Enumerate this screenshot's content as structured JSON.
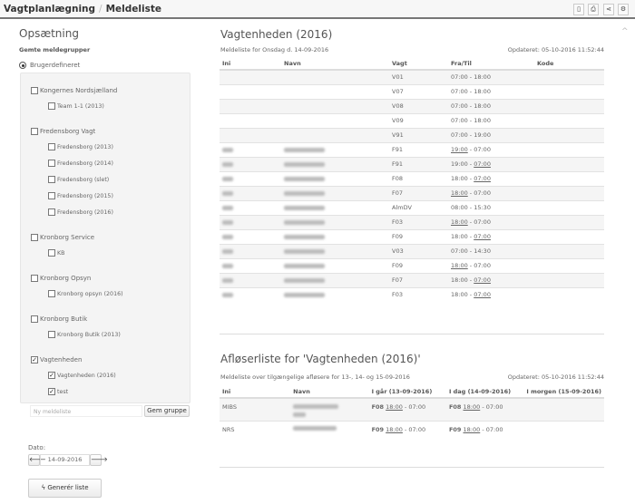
{
  "header": {
    "breadcrumb": [
      "Vagtplanlægning",
      "Meldeliste"
    ],
    "separator": "/",
    "toolbar": [
      {
        "icon": "pdf-icon",
        "glyph": "▯"
      },
      {
        "icon": "print-icon",
        "glyph": "⎙"
      },
      {
        "icon": "share-icon",
        "glyph": "⋖"
      },
      {
        "icon": "gear-icon",
        "glyph": "⚙"
      }
    ]
  },
  "sidebar": {
    "title": "Opsætning",
    "subtitle": "Gemte meldegrupper",
    "radio_label": "Brugerdefineret",
    "groups": [
      {
        "label": "Kongernes Nordsjælland",
        "checked": false,
        "items": [
          {
            "label": "Team 1-1 (2013)",
            "checked": false
          }
        ]
      },
      {
        "label": "Fredensborg Vagt",
        "checked": false,
        "items": [
          {
            "label": "Fredensborg (2013)",
            "checked": false
          },
          {
            "label": "Fredensborg (2014)",
            "checked": false
          },
          {
            "label": "Fredensborg (slet)",
            "checked": false
          },
          {
            "label": "Fredensborg (2015)",
            "checked": false
          },
          {
            "label": "Fredensborg (2016)",
            "checked": false
          }
        ]
      },
      {
        "label": "Kronborg Service",
        "checked": false,
        "items": [
          {
            "label": "KB",
            "checked": false
          }
        ]
      },
      {
        "label": "Kronborg Opsyn",
        "checked": false,
        "items": [
          {
            "label": "Kronborg opsyn (2016)",
            "checked": false
          }
        ]
      },
      {
        "label": "Kronborg Butik",
        "checked": false,
        "items": [
          {
            "label": "Kronborg Butik (2013)",
            "checked": false
          }
        ]
      },
      {
        "label": "Vagtenheden",
        "checked": true,
        "items": [
          {
            "label": "Vagtenheden (2016)",
            "checked": true
          },
          {
            "label": "test",
            "checked": true
          }
        ]
      }
    ],
    "new_list_placeholder": "Ny meldeliste",
    "save_group": "Gem gruppe",
    "date_label": "Dato:",
    "date_value": "14-09-2016",
    "generate": "Generér liste"
  },
  "meldeliste": {
    "title": "Vagtenheden (2016)",
    "subtitle": "Meldeliste for Onsdag d. 14-09-2016",
    "updated": "Opdateret: 05-10-2016 11:52:44",
    "columns": [
      "Ini",
      "Navn",
      "Vagt",
      "Fra/Til",
      "Kode"
    ],
    "rows": [
      {
        "vagt": "V01",
        "from": "07:00",
        "to": "18:00",
        "u": ""
      },
      {
        "vagt": "V07",
        "from": "07:00",
        "to": "18:00",
        "u": ""
      },
      {
        "vagt": "V08",
        "from": "07:00",
        "to": "18:00",
        "u": ""
      },
      {
        "vagt": "V09",
        "from": "07:00",
        "to": "18:00",
        "u": ""
      },
      {
        "vagt": "V91",
        "from": "07:00",
        "to": "19:00",
        "u": ""
      },
      {
        "vagt": "F91",
        "from": "19:00",
        "to": "07:00",
        "u": "from",
        "blurred": true
      },
      {
        "vagt": "F91",
        "from": "19:00",
        "to": "07:00",
        "u": "to",
        "blurred": true
      },
      {
        "vagt": "F08",
        "from": "18:00",
        "to": "07:00",
        "u": "to",
        "blurred": true
      },
      {
        "vagt": "F07",
        "from": "18:00",
        "to": "07:00",
        "u": "from",
        "blurred": true
      },
      {
        "vagt": "AlmDV",
        "from": "08:00",
        "to": "15:30",
        "u": "",
        "blurred": true
      },
      {
        "vagt": "F03",
        "from": "18:00",
        "to": "07:00",
        "u": "from",
        "blurred": true
      },
      {
        "vagt": "F09",
        "from": "18:00",
        "to": "07:00",
        "u": "to",
        "blurred": true
      },
      {
        "vagt": "V03",
        "from": "07:00",
        "to": "14:30",
        "u": "",
        "blurred": true
      },
      {
        "vagt": "F09",
        "from": "18:00",
        "to": "07:00",
        "u": "from",
        "blurred": true
      },
      {
        "vagt": "F07",
        "from": "18:00",
        "to": "07:00",
        "u": "to",
        "blurred": true
      },
      {
        "vagt": "F03",
        "from": "18:00",
        "to": "07:00",
        "u": "to",
        "blurred": true
      }
    ]
  },
  "afloser": {
    "title": "Afløserliste for 'Vagtenheden (2016)'",
    "subtitle": "Meldeliste over tilgængelige afløsere for 13-, 14- og 15-09-2016",
    "updated": "Opdateret: 05-10-2016 11:52:44",
    "columns": [
      "Ini",
      "Navn",
      "I går (13-09-2016)",
      "I dag (14-09-2016)",
      "I morgen (15-09-2016)"
    ],
    "rows": [
      {
        "ini": "MIBS",
        "yesterday": {
          "code": "F08",
          "from": "18:00",
          "to": "07:00"
        },
        "today": {
          "code": "F08",
          "from": "18:00",
          "to": "07:00"
        }
      },
      {
        "ini": "NRS",
        "yesterday": {
          "code": "F09",
          "from": "18:00",
          "to": "07:00"
        },
        "today": {
          "code": "F09",
          "from": "18:00",
          "to": "07:00"
        }
      }
    ]
  }
}
